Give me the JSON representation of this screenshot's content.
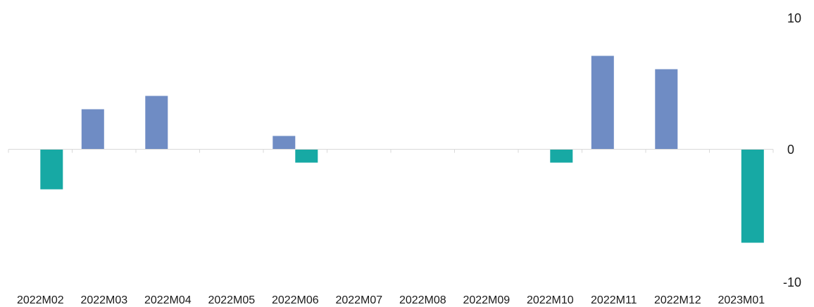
{
  "chart_data": {
    "type": "bar",
    "categories": [
      "2022M02",
      "2022M03",
      "2022M04",
      "2022M05",
      "2022M06",
      "2022M07",
      "2022M08",
      "2022M09",
      "2022M10",
      "2022M11",
      "2022M12",
      "2023M01"
    ],
    "series": [
      {
        "values": [
          0,
          3,
          4,
          0,
          1,
          0,
          0,
          0,
          0,
          7,
          6,
          0
        ],
        "color": "#6f8cc4"
      },
      {
        "values": [
          -3,
          0,
          0,
          0,
          -1,
          0,
          0,
          0,
          -1,
          0,
          0,
          -7
        ],
        "color": "#17a9a4"
      }
    ],
    "ylim": [
      -10,
      10
    ],
    "yticks": [
      "10",
      "0",
      "-10"
    ],
    "yaxis_position": "right",
    "legend": "none",
    "grid": false
  }
}
